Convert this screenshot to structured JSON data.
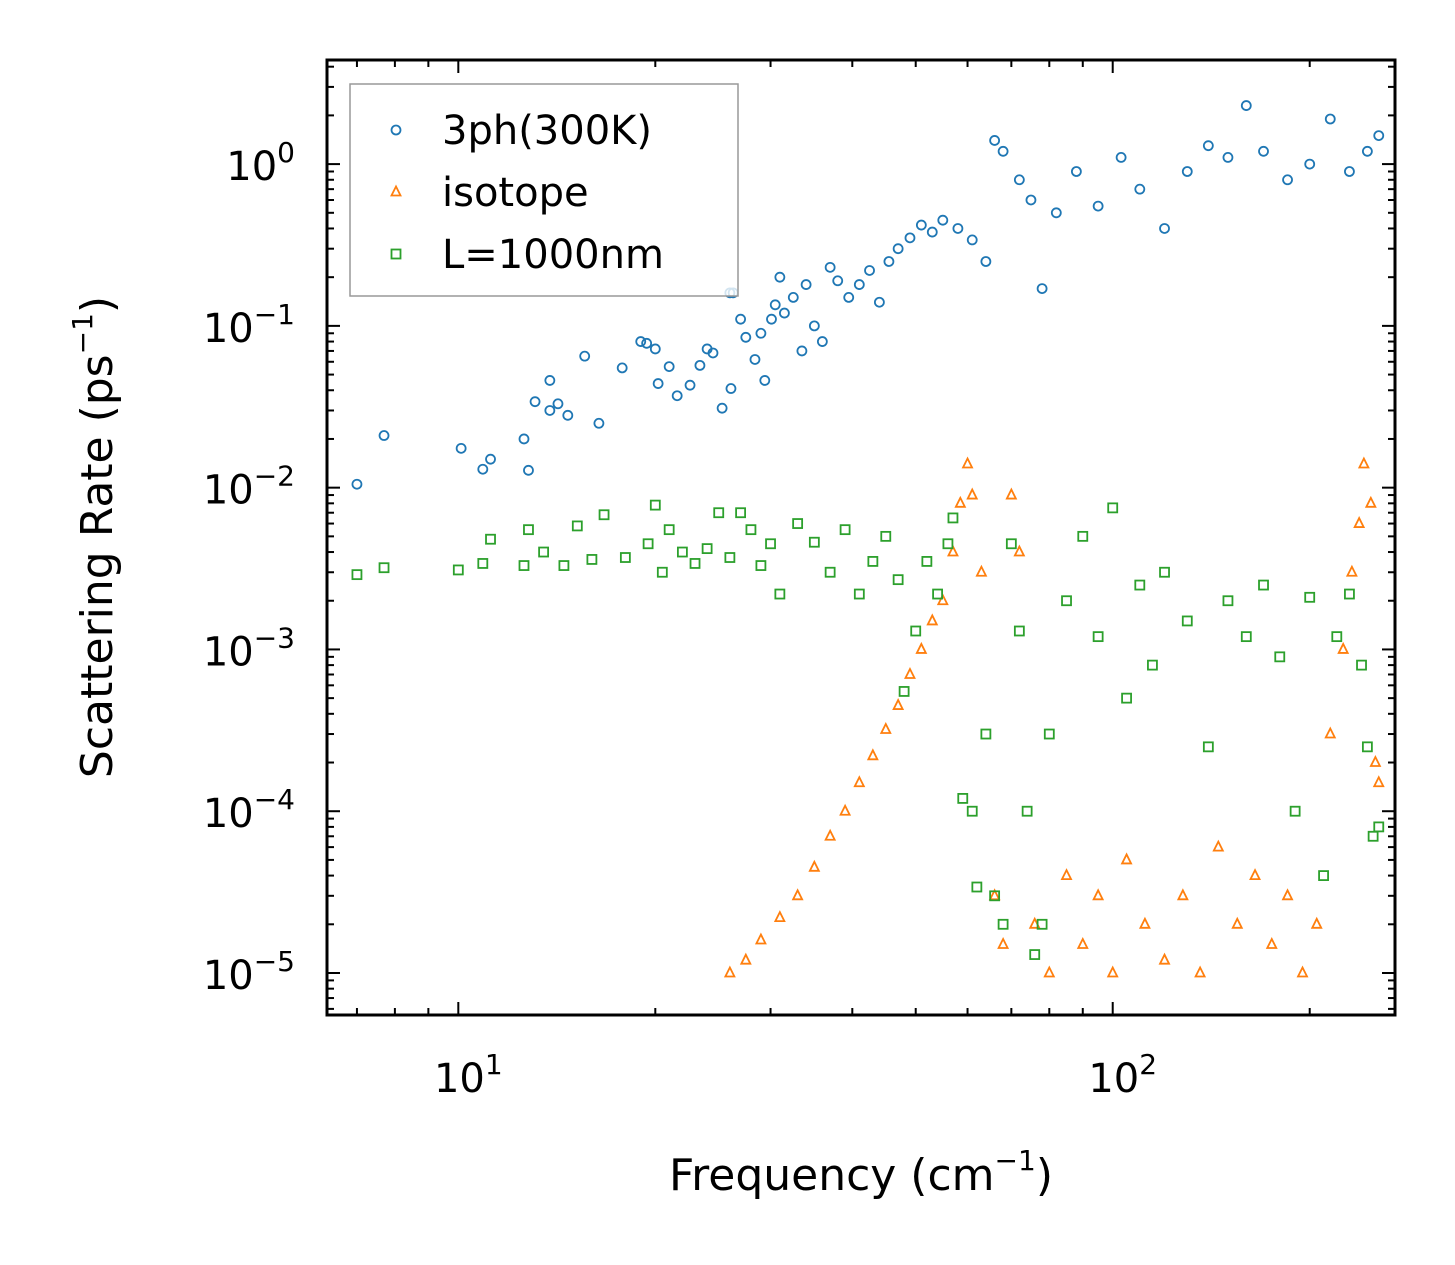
{
  "chart_data": {
    "type": "scatter",
    "xscale": "log",
    "yscale": "log",
    "xlim": [
      6.3,
      270
    ],
    "ylim": [
      5.5e-06,
      4.4
    ],
    "xlabel": "Frequency (cm",
    "xlabel_sup": "−1",
    "xlabel_end": ")",
    "ylabel": "Scattering Rate (ps",
    "ylabel_sup": "−1",
    "ylabel_end": ")",
    "legend_position": "upper-left",
    "x_ticks": [
      {
        "value": 10,
        "base": "10",
        "exp": "1"
      },
      {
        "value": 100,
        "base": "10",
        "exp": "2"
      }
    ],
    "y_ticks": [
      {
        "value": 1,
        "base": "10",
        "exp": "0"
      },
      {
        "value": 0.1,
        "base": "10",
        "exp": "−1"
      },
      {
        "value": 0.01,
        "base": "10",
        "exp": "−2"
      },
      {
        "value": 0.001,
        "base": "10",
        "exp": "−3"
      },
      {
        "value": 0.0001,
        "base": "10",
        "exp": "−4"
      },
      {
        "value": 1e-05,
        "base": "10",
        "exp": "−5"
      }
    ],
    "series": [
      {
        "name": "3ph(300K)",
        "marker": "circle",
        "color": "#1f77b4",
        "points": [
          [
            7.0,
            0.0105
          ],
          [
            7.7,
            0.021
          ],
          [
            10.1,
            0.0175
          ],
          [
            10.9,
            0.013
          ],
          [
            11.2,
            0.015
          ],
          [
            12.6,
            0.02
          ],
          [
            12.8,
            0.0128
          ],
          [
            13.1,
            0.034
          ],
          [
            13.8,
            0.03
          ],
          [
            14.2,
            0.033
          ],
          [
            14.7,
            0.028
          ],
          [
            13.8,
            0.046
          ],
          [
            15.6,
            0.065
          ],
          [
            16.4,
            0.025
          ],
          [
            17.8,
            0.055
          ],
          [
            19.0,
            0.08
          ],
          [
            19.4,
            0.078
          ],
          [
            20.0,
            0.072
          ],
          [
            20.2,
            0.044
          ],
          [
            21.0,
            0.056
          ],
          [
            21.6,
            0.037
          ],
          [
            22.6,
            0.043
          ],
          [
            23.4,
            0.057
          ],
          [
            24.0,
            0.072
          ],
          [
            24.5,
            0.068
          ],
          [
            25.3,
            0.031
          ],
          [
            26.1,
            0.041
          ],
          [
            26.0,
            0.16
          ],
          [
            26.3,
            0.16
          ],
          [
            27.0,
            0.11
          ],
          [
            27.5,
            0.085
          ],
          [
            28.4,
            0.062
          ],
          [
            29.0,
            0.09
          ],
          [
            29.4,
            0.046
          ],
          [
            30.1,
            0.11
          ],
          [
            30.5,
            0.135
          ],
          [
            31.0,
            0.2
          ],
          [
            31.5,
            0.12
          ],
          [
            32.5,
            0.15
          ],
          [
            33.5,
            0.07
          ],
          [
            34.0,
            0.18
          ],
          [
            35.0,
            0.1
          ],
          [
            36.0,
            0.08
          ],
          [
            37.0,
            0.23
          ],
          [
            38.0,
            0.19
          ],
          [
            39.5,
            0.15
          ],
          [
            41.0,
            0.18
          ],
          [
            42.5,
            0.22
          ],
          [
            44.0,
            0.14
          ],
          [
            45.5,
            0.25
          ],
          [
            47.0,
            0.3
          ],
          [
            49.0,
            0.35
          ],
          [
            51.0,
            0.42
          ],
          [
            53.0,
            0.38
          ],
          [
            55.0,
            0.45
          ],
          [
            58.0,
            0.4
          ],
          [
            61.0,
            0.34
          ],
          [
            64.0,
            0.25
          ],
          [
            66.0,
            1.4
          ],
          [
            68.0,
            1.2
          ],
          [
            72.0,
            0.8
          ],
          [
            75.0,
            0.6
          ],
          [
            78.0,
            0.17
          ],
          [
            82.0,
            0.5
          ],
          [
            88.0,
            0.9
          ],
          [
            95.0,
            0.55
          ],
          [
            103.0,
            1.1
          ],
          [
            110.0,
            0.7
          ],
          [
            120.0,
            0.4
          ],
          [
            130.0,
            0.9
          ],
          [
            140.0,
            1.3
          ],
          [
            150.0,
            1.1
          ],
          [
            160.0,
            2.3
          ],
          [
            170.0,
            1.2
          ],
          [
            185.0,
            0.8
          ],
          [
            200.0,
            1.0
          ],
          [
            215.0,
            1.9
          ],
          [
            230.0,
            0.9
          ],
          [
            245.0,
            1.2
          ],
          [
            255.0,
            1.5
          ]
        ]
      },
      {
        "name": "isotope",
        "marker": "triangle",
        "color": "#ff7f0e",
        "points": [
          [
            26.0,
            1e-05
          ],
          [
            27.5,
            1.2e-05
          ],
          [
            29.0,
            1.6e-05
          ],
          [
            31.0,
            2.2e-05
          ],
          [
            33.0,
            3e-05
          ],
          [
            35.0,
            4.5e-05
          ],
          [
            37.0,
            7e-05
          ],
          [
            39.0,
            0.0001
          ],
          [
            41.0,
            0.00015
          ],
          [
            43.0,
            0.00022
          ],
          [
            45.0,
            0.00032
          ],
          [
            47.0,
            0.00045
          ],
          [
            49.0,
            0.0007
          ],
          [
            51.0,
            0.001
          ],
          [
            53.0,
            0.0015
          ],
          [
            55.0,
            0.002
          ],
          [
            57.0,
            0.004
          ],
          [
            58.5,
            0.008
          ],
          [
            60.0,
            0.014
          ],
          [
            61.0,
            0.009
          ],
          [
            63.0,
            0.003
          ],
          [
            66.0,
            3e-05
          ],
          [
            68.0,
            1.5e-05
          ],
          [
            70.0,
            0.009
          ],
          [
            72.0,
            0.004
          ],
          [
            76.0,
            2e-05
          ],
          [
            80.0,
            1e-05
          ],
          [
            85.0,
            4e-05
          ],
          [
            90.0,
            1.5e-05
          ],
          [
            95.0,
            3e-05
          ],
          [
            100.0,
            1e-05
          ],
          [
            105.0,
            5e-05
          ],
          [
            112.0,
            2e-05
          ],
          [
            120.0,
            1.2e-05
          ],
          [
            128.0,
            3e-05
          ],
          [
            136.0,
            1e-05
          ],
          [
            145.0,
            6e-05
          ],
          [
            155.0,
            2e-05
          ],
          [
            165.0,
            4e-05
          ],
          [
            175.0,
            1.5e-05
          ],
          [
            185.0,
            3e-05
          ],
          [
            195.0,
            1e-05
          ],
          [
            205.0,
            2e-05
          ],
          [
            215.0,
            0.0003
          ],
          [
            225.0,
            0.001
          ],
          [
            232.0,
            0.003
          ],
          [
            238.0,
            0.006
          ],
          [
            242.0,
            0.014
          ],
          [
            248.0,
            0.008
          ],
          [
            252.0,
            0.0002
          ],
          [
            255.0,
            0.00015
          ]
        ]
      },
      {
        "name": "L=1000nm",
        "marker": "square",
        "color": "#2ca02c",
        "points": [
          [
            7.0,
            0.0029
          ],
          [
            7.7,
            0.0032
          ],
          [
            10.0,
            0.0031
          ],
          [
            10.9,
            0.0034
          ],
          [
            11.2,
            0.0048
          ],
          [
            12.6,
            0.0033
          ],
          [
            12.8,
            0.0055
          ],
          [
            13.5,
            0.004
          ],
          [
            14.5,
            0.0033
          ],
          [
            15.2,
            0.0058
          ],
          [
            16.0,
            0.0036
          ],
          [
            16.7,
            0.0068
          ],
          [
            18.0,
            0.0037
          ],
          [
            19.5,
            0.0045
          ],
          [
            20.0,
            0.0078
          ],
          [
            20.5,
            0.003
          ],
          [
            21.0,
            0.0055
          ],
          [
            22.0,
            0.004
          ],
          [
            23.0,
            0.0034
          ],
          [
            24.0,
            0.0042
          ],
          [
            25.0,
            0.007
          ],
          [
            26.0,
            0.0037
          ],
          [
            27.0,
            0.007
          ],
          [
            28.0,
            0.0055
          ],
          [
            29.0,
            0.0033
          ],
          [
            30.0,
            0.0045
          ],
          [
            31.0,
            0.0022
          ],
          [
            33.0,
            0.006
          ],
          [
            35.0,
            0.0046
          ],
          [
            37.0,
            0.003
          ],
          [
            39.0,
            0.0055
          ],
          [
            41.0,
            0.0022
          ],
          [
            43.0,
            0.0035
          ],
          [
            45.0,
            0.005
          ],
          [
            47.0,
            0.0027
          ],
          [
            48.0,
            0.00055
          ],
          [
            50.0,
            0.0013
          ],
          [
            52.0,
            0.0035
          ],
          [
            54.0,
            0.0022
          ],
          [
            56.0,
            0.0045
          ],
          [
            57.0,
            0.0065
          ],
          [
            59.0,
            0.00012
          ],
          [
            61.0,
            0.0001
          ],
          [
            62.0,
            3.4e-05
          ],
          [
            64.0,
            0.0003
          ],
          [
            66.0,
            3e-05
          ],
          [
            68.0,
            2e-05
          ],
          [
            70.0,
            0.0045
          ],
          [
            72.0,
            0.0013
          ],
          [
            74.0,
            0.0001
          ],
          [
            76.0,
            1.3e-05
          ],
          [
            78.0,
            2e-05
          ],
          [
            80.0,
            0.0003
          ],
          [
            85.0,
            0.002
          ],
          [
            90.0,
            0.005
          ],
          [
            95.0,
            0.0012
          ],
          [
            100.0,
            0.0075
          ],
          [
            105.0,
            0.0005
          ],
          [
            110.0,
            0.0025
          ],
          [
            115.0,
            0.0008
          ],
          [
            120.0,
            0.003
          ],
          [
            130.0,
            0.0015
          ],
          [
            140.0,
            0.00025
          ],
          [
            150.0,
            0.002
          ],
          [
            160.0,
            0.0012
          ],
          [
            170.0,
            0.0025
          ],
          [
            180.0,
            0.0009
          ],
          [
            190.0,
            0.0001
          ],
          [
            200.0,
            0.0021
          ],
          [
            210.0,
            4e-05
          ],
          [
            220.0,
            0.0012
          ],
          [
            230.0,
            0.0022
          ],
          [
            240.0,
            0.0008
          ],
          [
            245.0,
            0.00025
          ],
          [
            250.0,
            7e-05
          ],
          [
            255.0,
            8e-05
          ]
        ]
      }
    ]
  }
}
